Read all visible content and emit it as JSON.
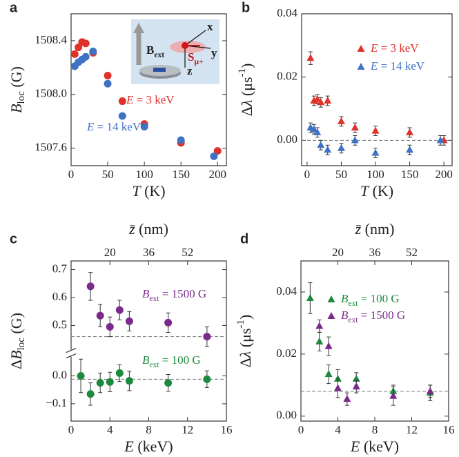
{
  "chart_data": [
    {
      "panel": "a",
      "type": "scatter",
      "xlabel": [
        {
          "text": "T",
          "style": "italic"
        },
        {
          "text": " (K)"
        }
      ],
      "ylabel": [
        {
          "text": "B",
          "style": "italic"
        },
        {
          "text": "loc",
          "style": "sub"
        },
        {
          "text": " (G)"
        }
      ],
      "xlim": [
        0,
        212
      ],
      "ylim": [
        1507.47,
        1508.6
      ],
      "xticks": [
        0,
        50,
        100,
        150,
        200
      ],
      "yticks": [
        1507.6,
        {
          "value": 1508.0,
          "label": "1508.0"
        },
        1508.4
      ],
      "legend": "inline",
      "series": [
        {
          "name": [
            {
              "text": "E",
              "style": "italic"
            },
            {
              "text": " = 3 keV"
            }
          ],
          "color": "#e0312b",
          "marker": "circle",
          "x": [
            5,
            10,
            15,
            20,
            30,
            50,
            70,
            100,
            150,
            200
          ],
          "values": [
            1508.3,
            1508.35,
            1508.39,
            1508.38,
            1508.31,
            1508.14,
            1507.95,
            1507.78,
            1507.64,
            1507.58
          ]
        },
        {
          "name": [
            {
              "text": "E",
              "style": "italic"
            },
            {
              "text": " = 14 keV"
            }
          ],
          "color": "#3f72c4",
          "marker": "circle",
          "x": [
            5,
            10,
            15,
            20,
            30,
            50,
            70,
            100,
            150,
            195
          ],
          "values": [
            1508.21,
            1508.24,
            1508.26,
            1508.28,
            1508.32,
            1508.08,
            1507.84,
            1507.76,
            1507.66,
            1507.54
          ]
        }
      ],
      "inset": {
        "field": [
          {
            "text": "B"
          },
          {
            "text": "ext",
            "style": "sub"
          }
        ],
        "x": "x",
        "y": "y",
        "z": "z",
        "spin": [
          {
            "text": "S"
          },
          {
            "text": "μ+",
            "style": "sub"
          }
        ]
      }
    },
    {
      "panel": "b",
      "type": "scatter",
      "xlabel": [
        {
          "text": "T",
          "style": "italic"
        },
        {
          "text": " (K)"
        }
      ],
      "ylabel": [
        {
          "text": "Δ"
        },
        {
          "text": "λ",
          "style": "italic"
        },
        {
          "text": " (μs"
        },
        {
          "text": "-1",
          "style": "sup"
        },
        {
          "text": ")"
        }
      ],
      "xlim": [
        -8,
        212
      ],
      "ylim": [
        -0.008,
        0.04
      ],
      "xticks": [
        0,
        50,
        100,
        150,
        200
      ],
      "yticks": [
        {
          "value": 0,
          "label": "0.00"
        },
        {
          "value": 0.02,
          "label": "0.02"
        },
        {
          "value": 0.04,
          "label": "0.04"
        }
      ],
      "reference_lines": [
        0
      ],
      "legend": "upper right",
      "series": [
        {
          "name": [
            {
              "text": "E",
              "style": "italic"
            },
            {
              "text": " = 3 keV"
            }
          ],
          "color": "#e0312b",
          "marker": "triangle",
          "x": [
            5,
            10,
            15,
            20,
            30,
            50,
            70,
            100,
            150,
            200
          ],
          "values": [
            0.026,
            0.0125,
            0.013,
            0.012,
            0.0125,
            0.006,
            0.004,
            0.003,
            0.0025,
            0
          ],
          "errors": [
            0.002,
            0.0015,
            0.0015,
            0.0015,
            0.0015,
            0.0015,
            0.0015,
            0.0015,
            0.0015,
            0.0015
          ]
        },
        {
          "name": [
            {
              "text": "E",
              "style": "italic"
            },
            {
              "text": " = 14 keV"
            }
          ],
          "color": "#3f72c4",
          "marker": "triangle",
          "x": [
            5,
            10,
            15,
            20,
            30,
            50,
            70,
            100,
            150,
            195
          ],
          "values": [
            0.004,
            0.0035,
            0.0025,
            -0.0015,
            -0.003,
            -0.0025,
            0,
            -0.004,
            -0.003,
            0
          ],
          "errors": [
            0.0015,
            0.0015,
            0.0015,
            0.0015,
            0.0015,
            0.0015,
            0.0015,
            0.0015,
            0.0015,
            0.0015
          ]
        }
      ]
    },
    {
      "panel": "c",
      "type": "scatter",
      "xlabel": [
        {
          "text": "E",
          "style": "italic"
        },
        {
          "text": " (keV)"
        }
      ],
      "ylabel": [
        {
          "text": "Δ"
        },
        {
          "text": "B",
          "style": "italic"
        },
        {
          "text": "loc",
          "style": "sub"
        },
        {
          "text": " (G)"
        }
      ],
      "x2label": [
        {
          "text": "z̄",
          "style": "italic"
        },
        {
          "text": " (nm)"
        }
      ],
      "xlim": [
        0,
        16
      ],
      "ylim_segments": [
        [
          -0.162,
          0.064
        ],
        [
          0.418,
          0.731
        ]
      ],
      "xticks": [
        0,
        4,
        8,
        12,
        16
      ],
      "x2ticks": [
        {
          "value": 4,
          "label": "20"
        },
        {
          "value": 8,
          "label": "36"
        },
        {
          "value": 12,
          "label": "52"
        }
      ],
      "yticks": [
        {
          "value": -0.1,
          "label": "−0.1"
        },
        {
          "value": 0,
          "label": "0.0"
        },
        0.5,
        0.6,
        0.7
      ],
      "reference_lines": [
        0.46,
        -0.012
      ],
      "legend": "inline",
      "series": [
        {
          "name": [
            {
              "text": "B",
              "style": "italic"
            },
            {
              "text": "ext",
              "style": "sub"
            },
            {
              "text": " = 1500 G"
            }
          ],
          "color": "#7b2a8c",
          "marker": "circle",
          "x": [
            2,
            3,
            4,
            5,
            6,
            10,
            14
          ],
          "values": [
            0.64,
            0.535,
            0.495,
            0.555,
            0.515,
            0.51,
            0.46
          ],
          "errors": [
            0.05,
            0.04,
            0.035,
            0.035,
            0.035,
            0.035,
            0.035
          ]
        },
        {
          "name": [
            {
              "text": "B",
              "style": "italic"
            },
            {
              "text": "ext",
              "style": "sub"
            },
            {
              "text": " = 100 G"
            }
          ],
          "color": "#1b8a3e",
          "marker": "circle",
          "x": [
            1,
            2,
            3,
            4,
            5,
            6,
            10,
            14
          ],
          "values": [
            0,
            -0.065,
            -0.025,
            -0.022,
            0.01,
            -0.018,
            -0.025,
            -0.012
          ],
          "errors": [
            0.06,
            0.04,
            0.035,
            0.035,
            0.03,
            0.035,
            0.03,
            0.03
          ]
        }
      ]
    },
    {
      "panel": "d",
      "type": "scatter",
      "xlabel": [
        {
          "text": "E",
          "style": "italic"
        },
        {
          "text": " (keV)"
        }
      ],
      "ylabel": [
        {
          "text": "Δ"
        },
        {
          "text": "λ",
          "style": "italic"
        },
        {
          "text": " (μs"
        },
        {
          "text": "-1",
          "style": "sup"
        },
        {
          "text": ")"
        }
      ],
      "x2label": [
        {
          "text": "z̄",
          "style": "italic"
        },
        {
          "text": " (nm)"
        }
      ],
      "xlim": [
        0,
        16
      ],
      "ylim": [
        -0.0016,
        0.05
      ],
      "xticks": [
        0,
        4,
        8,
        12,
        16
      ],
      "x2ticks": [
        {
          "value": 4,
          "label": "20"
        },
        {
          "value": 8,
          "label": "36"
        },
        {
          "value": 12,
          "label": "52"
        }
      ],
      "yticks": [
        {
          "value": 0,
          "label": "0.00"
        },
        {
          "value": 0.02,
          "label": "0.02"
        },
        {
          "value": 0.04,
          "label": "0.04"
        }
      ],
      "reference_lines": [
        0.008
      ],
      "legend": "upper right",
      "series": [
        {
          "name": [
            {
              "text": "B",
              "style": "italic"
            },
            {
              "text": "ext",
              "style": "sub"
            },
            {
              "text": " = 100 G"
            }
          ],
          "color": "#1b8a3e",
          "marker": "triangle",
          "x": [
            1,
            2,
            3,
            4,
            6,
            10,
            14
          ],
          "values": [
            0.038,
            0.024,
            0.0135,
            0.012,
            0.012,
            0.008,
            0.0075
          ],
          "errors": [
            0.005,
            0.003,
            0.003,
            0.003,
            0.002,
            0.002,
            0.0025
          ]
        },
        {
          "name": [
            {
              "text": "B",
              "style": "italic"
            },
            {
              "text": "ext",
              "style": "sub"
            },
            {
              "text": " = 1500 G"
            }
          ],
          "color": "#7b2a8c",
          "marker": "triangle",
          "x": [
            2,
            3,
            4,
            5,
            6,
            10,
            14
          ],
          "values": [
            0.029,
            0.0225,
            0.009,
            0.0055,
            0.0095,
            0.0065,
            0.008
          ],
          "errors": [
            0.002,
            0.003,
            0.003,
            0.002,
            0.002,
            0.003,
            0.002
          ]
        }
      ]
    }
  ]
}
